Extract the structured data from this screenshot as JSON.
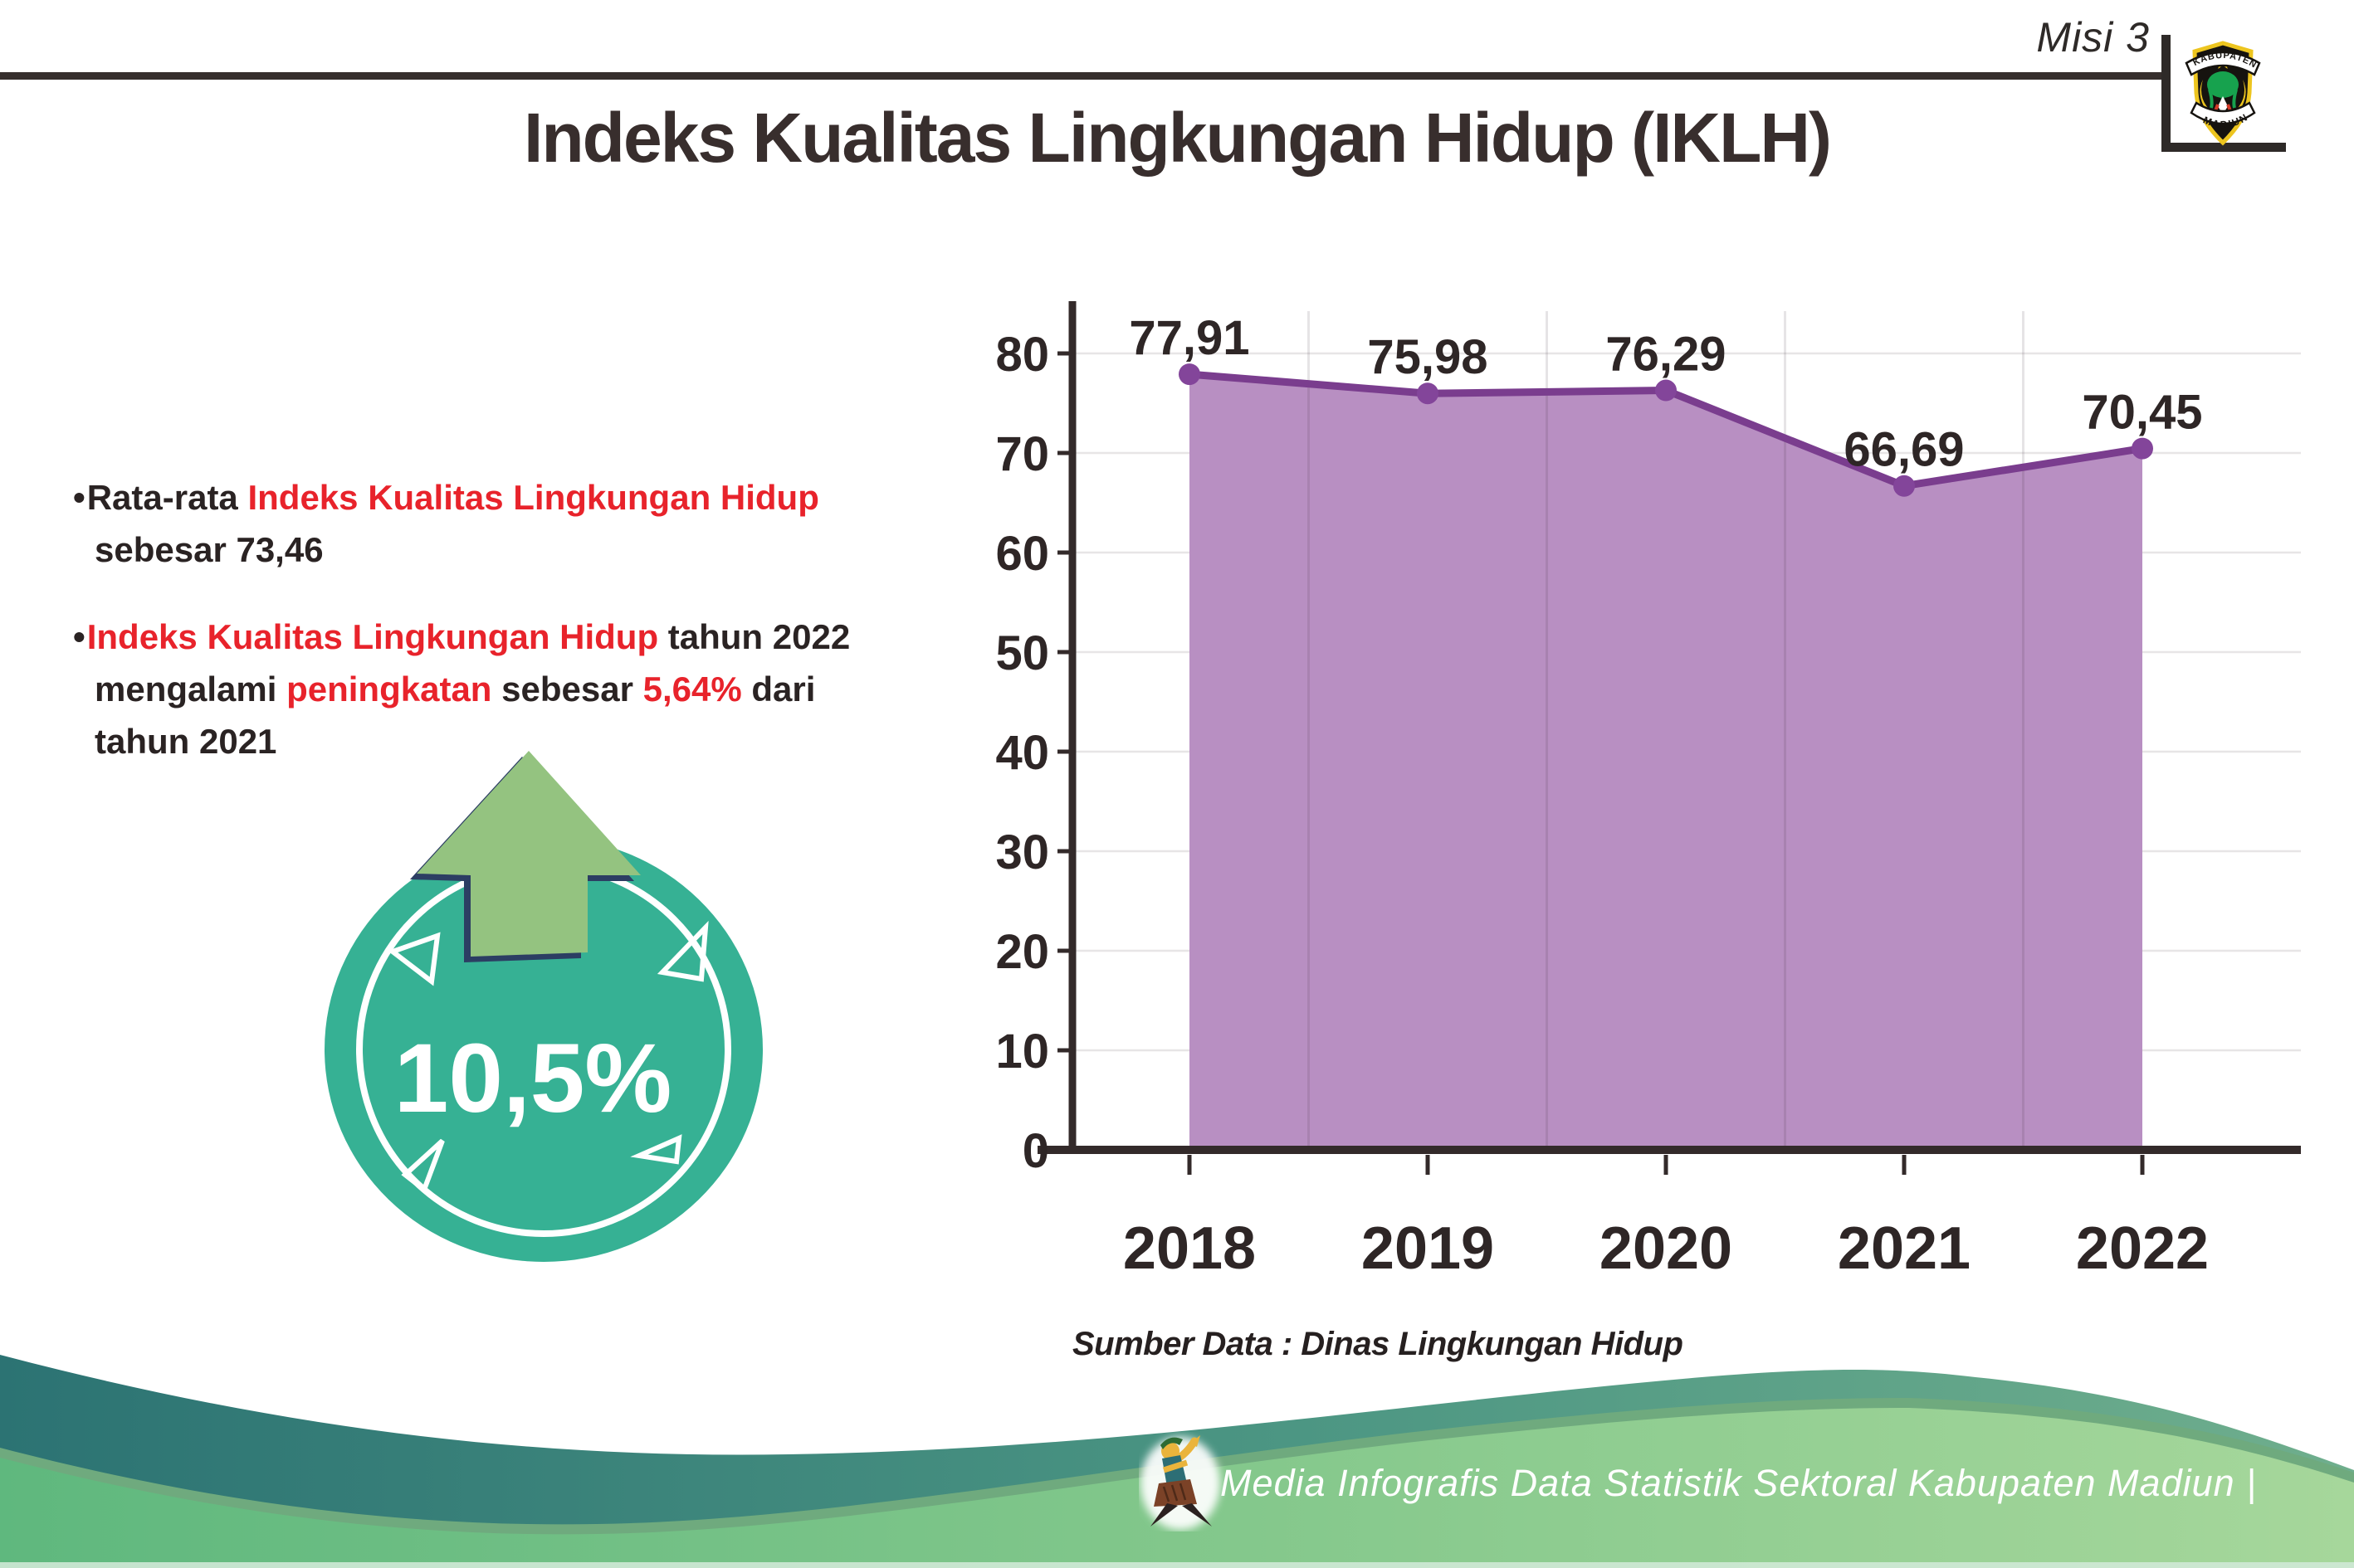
{
  "page": {
    "misi": "Misi 3",
    "title": "Indeks Kualitas Lingkungan Hidup (IKLH)",
    "source": "Sumber Data : Dinas Lingkungan Hidup",
    "footer_text": "Media Infografis Data Statistik Sektoral Kabupaten Madiun |"
  },
  "logo": {
    "top": "KABUPATEN",
    "bottom": "MADIUN"
  },
  "bullet_marker": "•",
  "bullets": [
    {
      "lines": [
        [
          {
            "t": "Rata-rata ",
            "c": "dark"
          },
          {
            "t": "Indeks Kualitas Lingkungan Hidup",
            "c": "red"
          }
        ],
        [
          {
            "t": "sebesar 73,46",
            "c": "dark"
          }
        ]
      ]
    },
    {
      "lines": [
        [
          {
            "t": "Indeks Kualitas Lingkungan Hidup",
            "c": "red"
          },
          {
            "t": " tahun 2022",
            "c": "dark"
          }
        ],
        [
          {
            "t": "mengalami ",
            "c": "dark"
          },
          {
            "t": "peningkatan",
            "c": "red"
          },
          {
            "t": " sebesar ",
            "c": "dark"
          },
          {
            "t": "5,64%",
            "c": "red"
          },
          {
            "t": " dari",
            "c": "dark"
          }
        ],
        [
          {
            "t": "tahun 2021",
            "c": "dark"
          }
        ]
      ]
    }
  ],
  "badge": {
    "value": "10,5%"
  },
  "chart_data": {
    "type": "area",
    "title": "",
    "xlabel": "",
    "ylabel": "",
    "categories": [
      "2018",
      "2019",
      "2020",
      "2021",
      "2022"
    ],
    "values": [
      77.91,
      75.98,
      76.29,
      66.69,
      70.45
    ],
    "point_labels": [
      "77,91",
      "75,98",
      "76,29",
      "66,69",
      "70,45"
    ],
    "ylim": [
      0,
      80
    ],
    "yticks": [
      0,
      10,
      20,
      30,
      40,
      50,
      60,
      70,
      80
    ],
    "grid": true,
    "legend_position": "none",
    "line_color": "#7a3d8e",
    "fill_color": "#b88fc2",
    "marker_color": "#83459a",
    "axis_color": "#332a2a",
    "label_color": "#2e2626",
    "grid_color": "#e7e5e6"
  },
  "colors": {
    "red_text": "#e8232b",
    "dark_text": "#2a2323",
    "teal_badge": "#36b194",
    "arrow_green": "#94c380",
    "arrow_outline": "#2c3e63",
    "wave_teal_1": "#2c7373",
    "wave_teal_2": "#4c9683",
    "wave_teal_3": "#6fae8d",
    "wave_green_1": "#5fb87e",
    "wave_green_2": "#82c78b",
    "wave_green_3": "#a6d79b",
    "wave_rim": "#6faa7e",
    "bottom_strip": "#cfe9d6",
    "header_line": "#362f2d"
  }
}
